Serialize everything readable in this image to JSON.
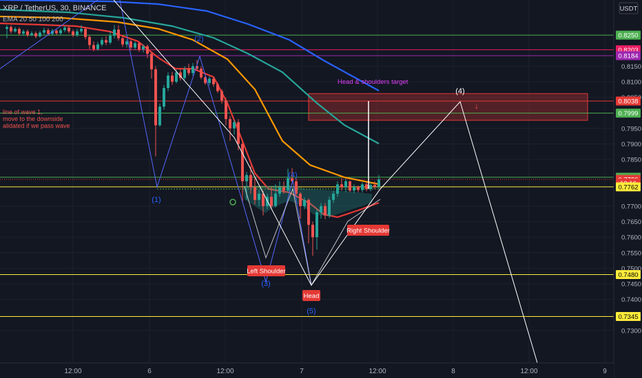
{
  "header": {
    "symbol": "XRP / TetherUS, 30, BINANCE",
    "indicator": "EMA 20 50 100 200"
  },
  "currency": "USDT",
  "chart_data": {
    "type": "candlestick",
    "ylim": [
      0.73,
      0.828
    ],
    "x_ticks": [
      "12:00",
      "6",
      "12:00",
      "7",
      "12:00",
      "8",
      "12:00",
      "9"
    ],
    "y_ticks": [
      "0.8150",
      "0.8100",
      "0.8050",
      "0.7950",
      "0.7900",
      "0.7850",
      "0.7700",
      "0.7650",
      "0.7600",
      "0.7550",
      "0.7500",
      "0.7450",
      "0.7400",
      "0.7300"
    ],
    "price_labels": [
      {
        "text": "0.8250",
        "value": 0.825,
        "color": "#4caf50",
        "text_color": "#ffffff"
      },
      {
        "text": "0.8203",
        "value": 0.8203,
        "color": "#e91e63",
        "text_color": "#ffffff"
      },
      {
        "text": "0.8184",
        "value": 0.8184,
        "color": "#9c27b0",
        "text_color": "#ffffff"
      },
      {
        "text": "0.8038",
        "value": 0.8038,
        "color": "#e53935",
        "text_color": "#ffffff"
      },
      {
        "text": "0.7999",
        "value": 0.7999,
        "color": "#4caf50",
        "text_color": "#ffffff"
      },
      {
        "text": "0.7793",
        "value": 0.7793,
        "color": "#4caf50",
        "text_color": "#ffffff"
      },
      {
        "text": "0.7786",
        "value": 0.7786,
        "color": "#e53935",
        "text_color": "#ffffff"
      },
      {
        "text": "12:16",
        "value": 0.7774,
        "color": "#e53935",
        "text_color": "#ffffff"
      },
      {
        "text": "0.7762",
        "value": 0.7762,
        "color": "#ffeb3b",
        "text_color": "#000000"
      },
      {
        "text": "0.7480",
        "value": 0.748,
        "color": "#ffeb3b",
        "text_color": "#000000"
      },
      {
        "text": "0.7345",
        "value": 0.7345,
        "color": "#ffeb3b",
        "text_color": "#000000"
      }
    ],
    "horizontal_lines": [
      {
        "value": 0.825,
        "color": "#4caf50"
      },
      {
        "value": 0.8203,
        "color": "#e91e63"
      },
      {
        "value": 0.8184,
        "color": "#9c27b0"
      },
      {
        "value": 0.8038,
        "color": "#e53935"
      },
      {
        "value": 0.7999,
        "color": "#4caf50"
      },
      {
        "value": 0.7793,
        "color": "#4caf50"
      },
      {
        "value": 0.7762,
        "color": "#ffeb3b"
      },
      {
        "value": 0.748,
        "color": "#ffeb3b"
      },
      {
        "value": 0.7345,
        "color": "#ffeb3b"
      }
    ],
    "wave_labels": [
      "(1)",
      "(2)",
      "(3)",
      "(4)",
      "(5)"
    ],
    "projected_wave_label": "(4)",
    "pattern_labels": {
      "left_shoulder": "Left Shoulder",
      "head": "Head",
      "right_shoulder": "Right Shoulder",
      "target": "Head & shoulders target"
    },
    "note_lines": [
      "line of wave 1,",
      "move to the downside",
      "alidated if we pass wave"
    ],
    "ema_colors": {
      "ema20": "#e53935",
      "ema50": "#ff9800",
      "ema100": "#26a69a",
      "ema200": "#2962ff"
    },
    "candle_colors": {
      "up": "#26a69a",
      "down": "#ef5350"
    }
  }
}
